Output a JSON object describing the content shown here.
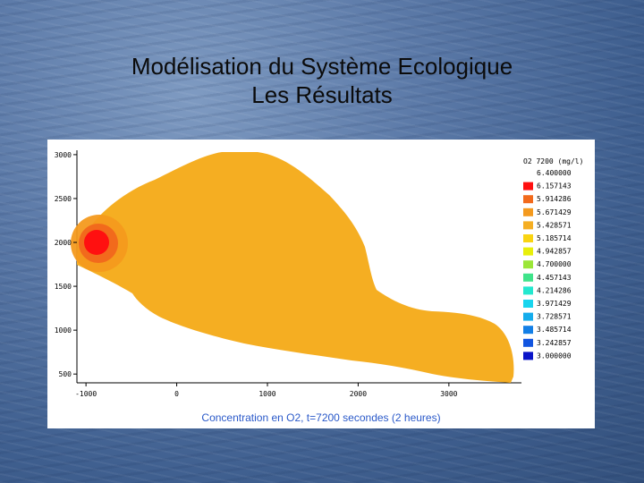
{
  "slide": {
    "title_line1": "Modélisation du Système Ecologique",
    "title_line2": "Les Résultats"
  },
  "chart_data": {
    "type": "heatmap",
    "title": "",
    "caption": "Concentration en O2, t=7200 secondes (2 heures)",
    "x_ticks": [
      "-1000",
      "0",
      "1000",
      "2000",
      "3000"
    ],
    "x_tick_values": [
      -1000,
      0,
      1000,
      2000,
      3000
    ],
    "y_ticks": [
      "3000",
      "2500",
      "2000",
      "1500",
      "1000",
      "500"
    ],
    "y_tick_values": [
      3000,
      2500,
      2000,
      1500,
      1000,
      500
    ],
    "xlim": [
      -1100,
      3800
    ],
    "ylim": [
      400,
      3050
    ],
    "legend": {
      "title": "O2 7200 (mg/l)",
      "levels": [
        {
          "label": "6.400000",
          "color": null
        },
        {
          "label": "6.157143",
          "color": "#ff1010"
        },
        {
          "label": "5.914286",
          "color": "#f26a1c"
        },
        {
          "label": "5.671429",
          "color": "#f49a1e"
        },
        {
          "label": "5.428571",
          "color": "#f5ae22"
        },
        {
          "label": "5.185714",
          "color": "#f9d412"
        },
        {
          "label": "4.942857",
          "color": "#e8ef0a"
        },
        {
          "label": "4.700000",
          "color": "#9be637"
        },
        {
          "label": "4.457143",
          "color": "#3fe38a"
        },
        {
          "label": "4.214286",
          "color": "#23e8cf"
        },
        {
          "label": "3.971429",
          "color": "#18d5ee"
        },
        {
          "label": "3.728571",
          "color": "#14acec"
        },
        {
          "label": "3.485714",
          "color": "#137fe6"
        },
        {
          "label": "3.242857",
          "color": "#1255e0"
        },
        {
          "label": "3.000000",
          "color": "#0a14c8"
        }
      ]
    },
    "field": {
      "dominant_value_range": [
        5.428571,
        5.671429
      ],
      "hotspot_center": [
        -900,
        1980
      ],
      "hotspot_max_range": [
        6.157143,
        6.4
      ]
    }
  }
}
